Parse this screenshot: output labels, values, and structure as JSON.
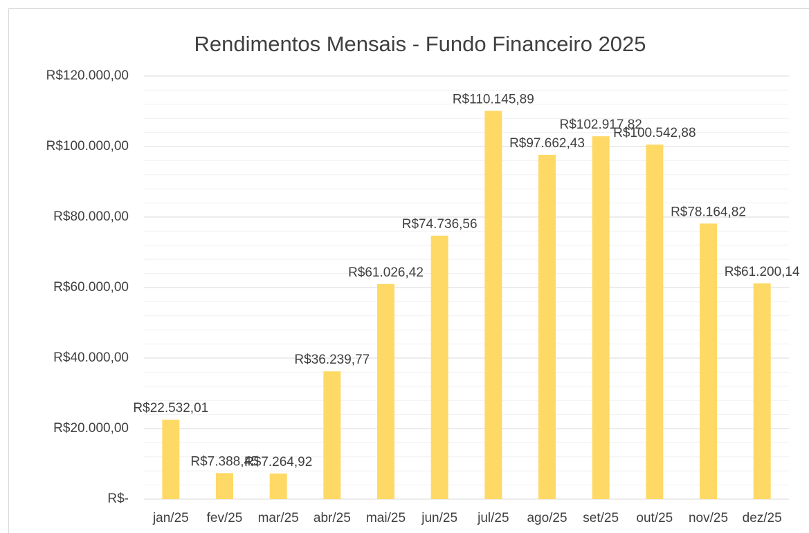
{
  "chart_data": {
    "type": "bar",
    "title": "Rendimentos Mensais - Fundo Financeiro 2025",
    "categories": [
      "jan/25",
      "fev/25",
      "mar/25",
      "abr/25",
      "mai/25",
      "jun/25",
      "jul/25",
      "ago/25",
      "set/25",
      "out/25",
      "nov/25",
      "dez/25"
    ],
    "values": [
      22532.01,
      7388.45,
      7264.92,
      36239.77,
      61026.42,
      74736.56,
      110145.89,
      97662.43,
      102917.82,
      100542.88,
      78164.82,
      61200.14
    ],
    "value_labels": [
      "R$22.532,01",
      "R$7.388,45",
      "R$7.264,92",
      "R$36.239,77",
      "R$61.026,42",
      "R$74.736,56",
      "R$110.145,89",
      "R$97.662,43",
      "R$102.917,82",
      "R$100.542,88",
      "R$78.164,82",
      "R$61.200,14"
    ],
    "color": "#FFD966",
    "ylim": [
      0,
      120000
    ],
    "yticks": [
      {
        "value": 0,
        "label": "R$-"
      },
      {
        "value": 20000,
        "label": "R$20.000,00"
      },
      {
        "value": 40000,
        "label": "R$40.000,00"
      },
      {
        "value": 60000,
        "label": "R$60.000,00"
      },
      {
        "value": 80000,
        "label": "R$80.000,00"
      },
      {
        "value": 100000,
        "label": "R$100.000,00"
      },
      {
        "value": 120000,
        "label": "R$120.000,00"
      }
    ],
    "minor_yticks": [
      4000,
      8000,
      12000,
      16000,
      24000,
      28000,
      32000,
      36000,
      44000,
      48000,
      52000,
      56000,
      64000,
      68000,
      72000,
      76000,
      84000,
      88000,
      92000,
      96000,
      104000,
      108000,
      112000,
      116000
    ],
    "grid": true
  }
}
